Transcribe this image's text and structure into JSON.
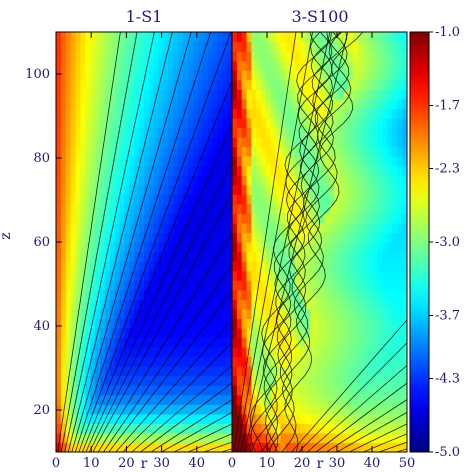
{
  "chart_data": {
    "type": "heatmap",
    "colormap": "jet",
    "colors": {
      "axis": "#1a1a8c",
      "contour": "#000000"
    },
    "colorbar": {
      "range": [
        -5.0,
        -1.0
      ],
      "tick_values": [
        -1.0,
        -1.7,
        -2.3,
        -3.0,
        -3.7,
        -4.3,
        -5.0
      ],
      "tick_labels": [
        "-1.0",
        "-1.7",
        "-2.3",
        "-3.0",
        "-3.7",
        "-4.3",
        "-5.0"
      ]
    },
    "panels": [
      {
        "title": "1-S1",
        "xlabel": "r",
        "ylabel": "z",
        "xlim": [
          0,
          50
        ],
        "ylim": [
          10,
          110
        ],
        "x_ticks": [
          "0",
          "10",
          "20",
          "30",
          "40"
        ],
        "y_ticks": [
          "20",
          "40",
          "60",
          "80",
          "100"
        ],
        "field_min_value": -4.6,
        "flow_lines_at_base_r": [
          0.5,
          1.5,
          2.5,
          3.5,
          4.5,
          5.5,
          6.5,
          7.5,
          8.5,
          9.5,
          10.5,
          12.0,
          13.5,
          15.0,
          17.0,
          19.0,
          21.5,
          24.0,
          27.0,
          30.0,
          33.5,
          37.5,
          42.0,
          47.0
        ],
        "turbulent": false
      },
      {
        "title": "3-S100",
        "xlabel": "r",
        "ylabel": "",
        "xlim": [
          0,
          50
        ],
        "ylim": [
          10,
          110
        ],
        "x_ticks": [
          "0",
          "10",
          "20",
          "30",
          "40",
          "50"
        ],
        "y_ticks": [],
        "field_min_value": -4.0,
        "flow_lines_at_base_r": [
          0.5,
          1.5,
          2.5,
          3.5,
          4.5,
          5.5,
          6.5,
          7.5,
          8.5,
          9.5,
          10.5,
          12.0,
          13.5,
          15.0,
          17.0,
          19.0,
          21.5,
          24.0,
          27.0,
          30.0,
          33.5,
          37.5,
          42.0,
          47.0
        ],
        "turbulent": true
      }
    ]
  }
}
